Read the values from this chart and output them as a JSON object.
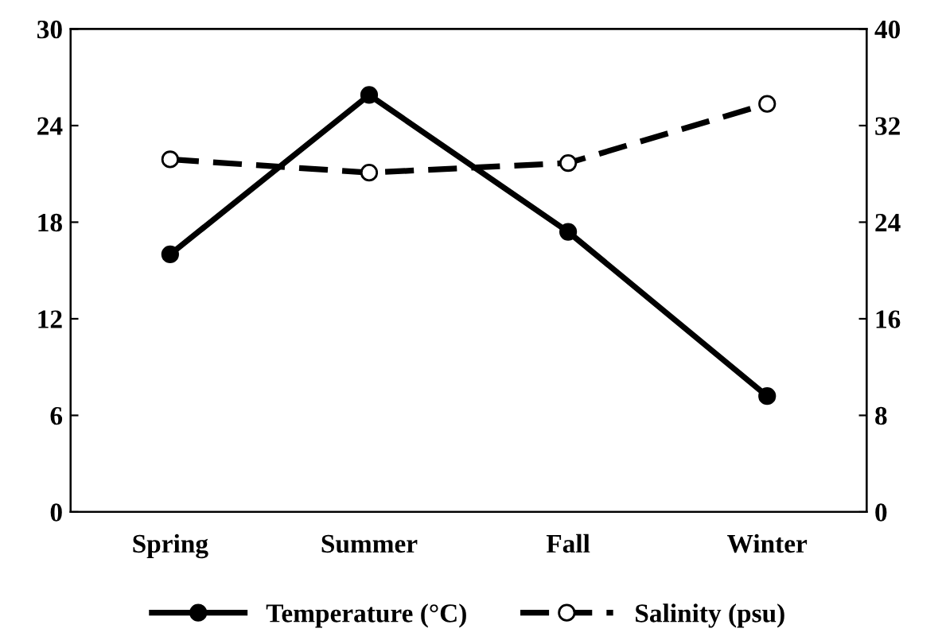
{
  "chart_data": {
    "type": "line",
    "categories": [
      "Spring",
      "Summer",
      "Fall",
      "Winter"
    ],
    "series": [
      {
        "name": "Temperature (°C)",
        "color": "#000000",
        "values": [
          16.0,
          25.9,
          17.4,
          7.2
        ],
        "marker": "circle",
        "line_style": "solid"
      },
      {
        "name": "Salinity (psu)",
        "color": "#000000",
        "values": [
          29.2,
          28.1,
          28.9,
          33.8
        ],
        "marker": "circle",
        "line_style": "dashed",
        "axis": "y2"
      }
    ],
    "ylim": [
      0,
      30
    ],
    "yticks": [
      0,
      6,
      12,
      18,
      24,
      30
    ],
    "y2lim": [
      0,
      40
    ],
    "y2ticks": [
      0,
      8,
      16,
      24,
      32,
      40
    ],
    "grid": false,
    "legend": "bottom"
  }
}
